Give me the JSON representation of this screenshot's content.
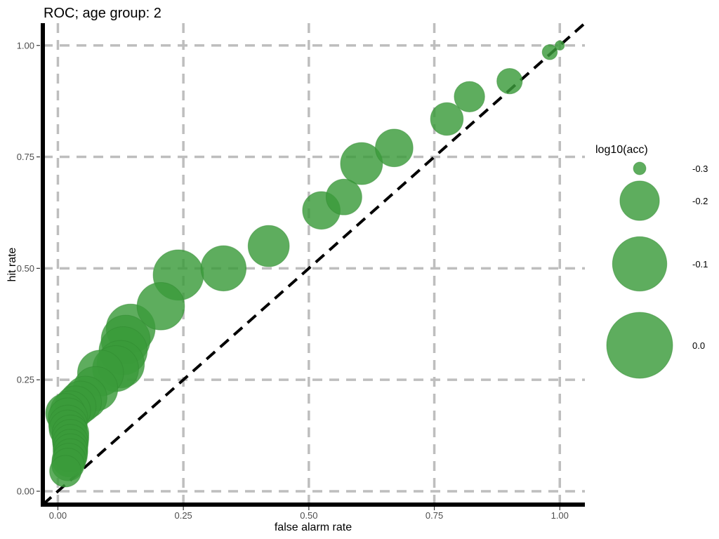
{
  "chart_data": {
    "type": "scatter",
    "title": "ROC; age group: 2",
    "xlabel": "false alarm rate",
    "ylabel": "hit rate",
    "xlim": [
      -0.03,
      1.05
    ],
    "ylim": [
      -0.03,
      1.05
    ],
    "x_ticks": [
      "0.00",
      "0.25",
      "0.50",
      "0.75",
      "1.00"
    ],
    "y_ticks": [
      "0.00",
      "0.25",
      "0.50",
      "0.75",
      "1.00"
    ],
    "x_tick_values": [
      0,
      0.25,
      0.5,
      0.75,
      1.0
    ],
    "y_tick_values": [
      0,
      0.25,
      0.5,
      0.75,
      1.0
    ],
    "grid": true,
    "reference_line": "diagonal",
    "point_color": "#3a9b3a",
    "size_variable": "log10(acc)",
    "legend": {
      "title": "log10(acc)",
      "placement": "right",
      "entries": [
        {
          "label": "-0.3",
          "value": -0.3
        },
        {
          "label": "-0.2",
          "value": -0.2
        },
        {
          "label": "-0.1",
          "value": -0.1
        },
        {
          "label": "0.0",
          "value": 0.0
        }
      ]
    },
    "points": [
      {
        "x": 1.0,
        "y": 1.0,
        "size": -0.305
      },
      {
        "x": 0.98,
        "y": 0.985,
        "size": -0.295
      },
      {
        "x": 0.9,
        "y": 0.92,
        "size": -0.265
      },
      {
        "x": 0.82,
        "y": 0.885,
        "size": -0.245
      },
      {
        "x": 0.775,
        "y": 0.835,
        "size": -0.235
      },
      {
        "x": 0.67,
        "y": 0.77,
        "size": -0.21
      },
      {
        "x": 0.605,
        "y": 0.735,
        "size": -0.185
      },
      {
        "x": 0.57,
        "y": 0.66,
        "size": -0.22
      },
      {
        "x": 0.525,
        "y": 0.63,
        "size": -0.21
      },
      {
        "x": 0.42,
        "y": 0.55,
        "size": -0.19
      },
      {
        "x": 0.33,
        "y": 0.5,
        "size": -0.165
      },
      {
        "x": 0.24,
        "y": 0.485,
        "size": -0.13
      },
      {
        "x": 0.205,
        "y": 0.415,
        "size": -0.15
      },
      {
        "x": 0.145,
        "y": 0.365,
        "size": -0.14
      },
      {
        "x": 0.135,
        "y": 0.34,
        "size": -0.14
      },
      {
        "x": 0.13,
        "y": 0.315,
        "size": -0.145
      },
      {
        "x": 0.125,
        "y": 0.285,
        "size": -0.15
      },
      {
        "x": 0.115,
        "y": 0.275,
        "size": -0.16
      },
      {
        "x": 0.085,
        "y": 0.265,
        "size": -0.16
      },
      {
        "x": 0.075,
        "y": 0.23,
        "size": -0.17
      },
      {
        "x": 0.055,
        "y": 0.21,
        "size": -0.18
      },
      {
        "x": 0.045,
        "y": 0.2,
        "size": -0.185
      },
      {
        "x": 0.035,
        "y": 0.19,
        "size": -0.19
      },
      {
        "x": 0.025,
        "y": 0.18,
        "size": -0.195
      },
      {
        "x": 0.015,
        "y": 0.175,
        "size": -0.2
      },
      {
        "x": 0.02,
        "y": 0.165,
        "size": -0.2
      },
      {
        "x": 0.02,
        "y": 0.15,
        "size": -0.205
      },
      {
        "x": 0.02,
        "y": 0.14,
        "size": -0.21
      },
      {
        "x": 0.025,
        "y": 0.13,
        "size": -0.215
      },
      {
        "x": 0.025,
        "y": 0.12,
        "size": -0.215
      },
      {
        "x": 0.025,
        "y": 0.11,
        "size": -0.22
      },
      {
        "x": 0.025,
        "y": 0.1,
        "size": -0.225
      },
      {
        "x": 0.025,
        "y": 0.09,
        "size": -0.225
      },
      {
        "x": 0.025,
        "y": 0.08,
        "size": -0.23
      },
      {
        "x": 0.022,
        "y": 0.07,
        "size": -0.23
      },
      {
        "x": 0.02,
        "y": 0.06,
        "size": -0.235
      },
      {
        "x": 0.015,
        "y": 0.045,
        "size": -0.24
      }
    ]
  }
}
